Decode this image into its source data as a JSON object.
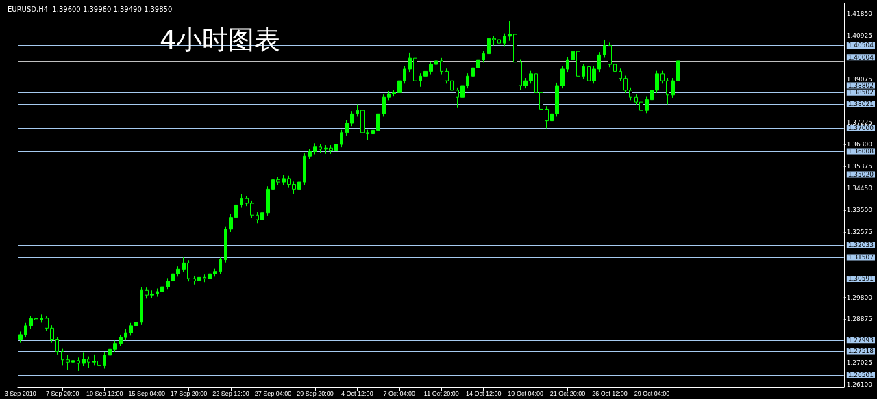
{
  "chart_data": {
    "type": "candlestick",
    "title": "4小时图表",
    "subtitle": "EURUSD,H4  1.39600 1.39960 1.39490 1.39850",
    "color": "#00ff00",
    "categories": [
      "3 Sep 2010",
      null,
      null,
      null,
      null,
      null,
      null,
      null,
      "7 Sep 20:00",
      null,
      null,
      null,
      null,
      null,
      null,
      null,
      "10 Sep 12:00",
      null,
      null,
      null,
      null,
      null,
      null,
      null,
      "15 Sep 04:00",
      null,
      null,
      null,
      null,
      null,
      null,
      null,
      "17 Sep 20:00",
      null,
      null,
      null,
      null,
      null,
      null,
      null,
      "22 Sep 12:00",
      null,
      null,
      null,
      null,
      null,
      null,
      null,
      "27 Sep 04:00",
      null,
      null,
      null,
      null,
      null,
      null,
      null,
      "29 Sep 20:00",
      null,
      null,
      null,
      null,
      null,
      null,
      null,
      "4 Oct 12:00",
      null,
      null,
      null,
      null,
      null,
      null,
      null,
      "7 Oct 04:00",
      null,
      null,
      null,
      null,
      null,
      null,
      null,
      "11 Oct 20:00",
      null,
      null,
      null,
      null,
      null,
      null,
      null,
      "14 Oct 12:00",
      null,
      null,
      null,
      null,
      null,
      null,
      null,
      "19 Oct 04:00",
      null,
      null,
      null,
      null,
      null,
      null,
      null,
      "21 Oct 20:00",
      null,
      null,
      null,
      null,
      null,
      null,
      null,
      "26 Oct 12:00",
      null,
      null,
      null,
      null,
      null,
      null,
      null,
      "29 Oct 04:00",
      null,
      null,
      null,
      null,
      null,
      null,
      null,
      null,
      null,
      null,
      null,
      null,
      null,
      null,
      null,
      null,
      null,
      null,
      null,
      null,
      null,
      null,
      null,
      null,
      null,
      null,
      null,
      null,
      null,
      null,
      null,
      null,
      null,
      null,
      null,
      null
    ],
    "ohlc": [
      [
        1.28,
        1.2835,
        1.2788,
        1.2822
      ],
      [
        1.2822,
        1.2872,
        1.281,
        1.286
      ],
      [
        1.286,
        1.2902,
        1.2848,
        1.289
      ],
      [
        1.289,
        1.2905,
        1.2872,
        1.2885
      ],
      [
        1.2885,
        1.2908,
        1.2873,
        1.2892
      ],
      [
        1.2892,
        1.29,
        1.2838,
        1.285
      ],
      [
        1.285,
        1.2862,
        1.2788,
        1.28
      ],
      [
        1.28,
        1.2812,
        1.2738,
        1.275
      ],
      [
        1.275,
        1.2762,
        1.269,
        1.2715
      ],
      [
        1.2715,
        1.2735,
        1.2672,
        1.2705
      ],
      [
        1.2705,
        1.274,
        1.269,
        1.2712
      ],
      [
        1.2712,
        1.2725,
        1.2668,
        1.27
      ],
      [
        1.27,
        1.2745,
        1.2688,
        1.2718
      ],
      [
        1.2718,
        1.273,
        1.268,
        1.2705
      ],
      [
        1.2705,
        1.2738,
        1.269,
        1.271
      ],
      [
        1.271,
        1.2722,
        1.266,
        1.269
      ],
      [
        1.269,
        1.2748,
        1.2678,
        1.2735
      ],
      [
        1.2735,
        1.2772,
        1.2723,
        1.276
      ],
      [
        1.276,
        1.2797,
        1.2748,
        1.2785
      ],
      [
        1.2785,
        1.2822,
        1.2773,
        1.281
      ],
      [
        1.281,
        1.2845,
        1.2798,
        1.283
      ],
      [
        1.283,
        1.2872,
        1.2818,
        1.286
      ],
      [
        1.286,
        1.289,
        1.2848,
        1.2875
      ],
      [
        1.2875,
        1.3025,
        1.2863,
        1.301
      ],
      [
        1.301,
        1.3022,
        1.2975,
        1.299
      ],
      [
        1.299,
        1.301,
        1.2978,
        1.2995
      ],
      [
        1.2995,
        1.3018,
        1.2983,
        1.3005
      ],
      [
        1.3005,
        1.304,
        1.2993,
        1.3025
      ],
      [
        1.3025,
        1.3062,
        1.3013,
        1.305
      ],
      [
        1.305,
        1.3092,
        1.3038,
        1.308
      ],
      [
        1.308,
        1.3112,
        1.3068,
        1.31
      ],
      [
        1.31,
        1.315,
        1.3088,
        1.3126
      ],
      [
        1.3126,
        1.3138,
        1.3048,
        1.306
      ],
      [
        1.306,
        1.3072,
        1.3035,
        1.305
      ],
      [
        1.305,
        1.3078,
        1.3038,
        1.3065
      ],
      [
        1.3065,
        1.3077,
        1.3045,
        1.306
      ],
      [
        1.306,
        1.3092,
        1.3048,
        1.308
      ],
      [
        1.308,
        1.3102,
        1.3068,
        1.309
      ],
      [
        1.309,
        1.3152,
        1.3078,
        1.314
      ],
      [
        1.314,
        1.3282,
        1.3128,
        1.327
      ],
      [
        1.327,
        1.3335,
        1.3258,
        1.332
      ],
      [
        1.332,
        1.3388,
        1.3308,
        1.3373
      ],
      [
        1.3373,
        1.342,
        1.3361,
        1.34
      ],
      [
        1.34,
        1.3412,
        1.3368,
        1.338
      ],
      [
        1.338,
        1.3392,
        1.3318,
        1.333
      ],
      [
        1.333,
        1.3342,
        1.3295,
        1.331
      ],
      [
        1.331,
        1.3352,
        1.3298,
        1.334
      ],
      [
        1.334,
        1.3452,
        1.3328,
        1.344
      ],
      [
        1.344,
        1.3495,
        1.3428,
        1.348
      ],
      [
        1.348,
        1.3492,
        1.3458,
        1.347
      ],
      [
        1.347,
        1.35,
        1.3458,
        1.3485
      ],
      [
        1.3485,
        1.3497,
        1.3448,
        1.346
      ],
      [
        1.346,
        1.3472,
        1.342,
        1.344
      ],
      [
        1.344,
        1.3482,
        1.3428,
        1.347
      ],
      [
        1.347,
        1.3592,
        1.3458,
        1.358
      ],
      [
        1.358,
        1.3612,
        1.3568,
        1.36
      ],
      [
        1.36,
        1.3635,
        1.3588,
        1.3619
      ],
      [
        1.3619,
        1.3631,
        1.3595,
        1.361
      ],
      [
        1.361,
        1.3627,
        1.359,
        1.3615
      ],
      [
        1.3615,
        1.3627,
        1.359,
        1.3605
      ],
      [
        1.3605,
        1.3642,
        1.3593,
        1.363
      ],
      [
        1.363,
        1.3692,
        1.3618,
        1.368
      ],
      [
        1.368,
        1.3732,
        1.3668,
        1.372
      ],
      [
        1.372,
        1.3772,
        1.3708,
        1.376
      ],
      [
        1.376,
        1.38,
        1.3748,
        1.3775
      ],
      [
        1.3775,
        1.3787,
        1.3668,
        1.368
      ],
      [
        1.368,
        1.3692,
        1.365,
        1.3675
      ],
      [
        1.3675,
        1.3702,
        1.3655,
        1.369
      ],
      [
        1.369,
        1.3772,
        1.3678,
        1.376
      ],
      [
        1.376,
        1.3842,
        1.3748,
        1.383
      ],
      [
        1.383,
        1.3857,
        1.3818,
        1.3845
      ],
      [
        1.3845,
        1.3862,
        1.3833,
        1.385
      ],
      [
        1.385,
        1.3912,
        1.3838,
        1.39
      ],
      [
        1.39,
        1.3962,
        1.3888,
        1.395
      ],
      [
        1.395,
        1.402,
        1.3938,
        1.3996
      ],
      [
        1.3996,
        1.4008,
        1.387,
        1.39
      ],
      [
        1.39,
        1.3932,
        1.3875,
        1.392
      ],
      [
        1.392,
        1.3952,
        1.3908,
        1.394
      ],
      [
        1.394,
        1.3982,
        1.3928,
        1.397
      ],
      [
        1.397,
        1.4,
        1.3958,
        1.3985
      ],
      [
        1.3985,
        1.3997,
        1.3928,
        1.394
      ],
      [
        1.394,
        1.3952,
        1.3888,
        1.39
      ],
      [
        1.39,
        1.3912,
        1.3848,
        1.386
      ],
      [
        1.386,
        1.3872,
        1.3785,
        1.383
      ],
      [
        1.383,
        1.3892,
        1.3818,
        1.388
      ],
      [
        1.388,
        1.3932,
        1.3868,
        1.392
      ],
      [
        1.392,
        1.3967,
        1.3908,
        1.3955
      ],
      [
        1.3955,
        1.4002,
        1.3943,
        1.399
      ],
      [
        1.399,
        1.4027,
        1.3978,
        1.4015
      ],
      [
        1.4015,
        1.4112,
        1.4003,
        1.408
      ],
      [
        1.408,
        1.4092,
        1.405,
        1.4075
      ],
      [
        1.4075,
        1.4087,
        1.404,
        1.406
      ],
      [
        1.406,
        1.4102,
        1.4048,
        1.409
      ],
      [
        1.409,
        1.4156,
        1.407,
        1.4098
      ],
      [
        1.4098,
        1.411,
        1.3968,
        1.398
      ],
      [
        1.398,
        1.3992,
        1.386,
        1.388
      ],
      [
        1.388,
        1.3912,
        1.3868,
        1.39
      ],
      [
        1.39,
        1.3942,
        1.3888,
        1.393
      ],
      [
        1.393,
        1.3942,
        1.3838,
        1.385
      ],
      [
        1.385,
        1.3862,
        1.3768,
        1.378
      ],
      [
        1.378,
        1.3792,
        1.3698,
        1.373
      ],
      [
        1.373,
        1.3772,
        1.3718,
        1.376
      ],
      [
        1.376,
        1.3892,
        1.3748,
        1.388
      ],
      [
        1.388,
        1.3962,
        1.3868,
        1.395
      ],
      [
        1.395,
        1.4002,
        1.3938,
        1.399
      ],
      [
        1.399,
        1.4045,
        1.3978,
        1.4025
      ],
      [
        1.4025,
        1.4037,
        1.3908,
        1.392
      ],
      [
        1.392,
        1.3972,
        1.3908,
        1.396
      ],
      [
        1.396,
        1.3972,
        1.3875,
        1.39
      ],
      [
        1.39,
        1.3962,
        1.3888,
        1.395
      ],
      [
        1.395,
        1.4022,
        1.3938,
        1.401
      ],
      [
        1.401,
        1.4075,
        1.3998,
        1.405
      ],
      [
        1.405,
        1.4062,
        1.3958,
        1.397
      ],
      [
        1.397,
        1.3982,
        1.3928,
        1.394
      ],
      [
        1.394,
        1.3952,
        1.3898,
        1.391
      ],
      [
        1.391,
        1.3922,
        1.3848,
        1.386
      ],
      [
        1.386,
        1.3872,
        1.3818,
        1.383
      ],
      [
        1.383,
        1.3842,
        1.3798,
        1.381
      ],
      [
        1.381,
        1.3822,
        1.373,
        1.3775
      ],
      [
        1.3775,
        1.3832,
        1.3763,
        1.382
      ],
      [
        1.382,
        1.3872,
        1.3808,
        1.386
      ],
      [
        1.386,
        1.3942,
        1.3848,
        1.393
      ],
      [
        1.393,
        1.3942,
        1.3888,
        1.39
      ],
      [
        1.39,
        1.3912,
        1.38,
        1.384
      ],
      [
        1.384,
        1.3912,
        1.3828,
        1.39
      ],
      [
        1.39,
        1.3996,
        1.3888,
        1.3985
      ],
      null,
      null,
      null,
      null,
      null,
      null,
      null,
      null,
      null,
      null,
      null,
      null,
      null,
      null,
      null,
      null,
      null,
      null,
      null,
      null,
      null,
      null,
      null,
      null,
      null,
      null,
      null,
      null,
      null,
      null,
      null
    ],
    "ylim": [
      1.2598,
      1.4229
    ],
    "yticks": [
      {
        "value": 1.261,
        "label": "1.26100"
      },
      {
        "value": 1.27025,
        "label": "1.27025"
      },
      {
        "value": 1.28875,
        "label": "1.28875"
      },
      {
        "value": 1.298,
        "label": "1.29800"
      },
      {
        "value": 1.32575,
        "label": "1.32575"
      },
      {
        "value": 1.335,
        "label": "1.33500"
      },
      {
        "value": 1.3445,
        "label": "1.34450"
      },
      {
        "value": 1.35375,
        "label": "1.35375"
      },
      {
        "value": 1.363,
        "label": "1.36300"
      },
      {
        "value": 1.37225,
        "label": "1.37225"
      },
      {
        "value": 1.39075,
        "label": "1.39075"
      },
      {
        "value": 1.40925,
        "label": "1.40925"
      },
      {
        "value": 1.4185,
        "label": "1.41850"
      }
    ],
    "ref_lines": [
      {
        "axis": "y",
        "value": 1.40504,
        "label": "1.40504",
        "color": "#a6caf0"
      },
      {
        "axis": "y",
        "value": 1.40004,
        "label": "1.40004",
        "color": "#a6caf0"
      },
      {
        "axis": "y",
        "value": 1.3985,
        "label": null,
        "color": "#c0c0c0"
      },
      {
        "axis": "y",
        "value": 1.38802,
        "label": "1.38802",
        "color": "#a6caf0"
      },
      {
        "axis": "y",
        "value": 1.38502,
        "label": "1.38502",
        "color": "#a6caf0"
      },
      {
        "axis": "y",
        "value": 1.38021,
        "label": "1.38021",
        "color": "#a6caf0"
      },
      {
        "axis": "y",
        "value": 1.37,
        "label": "1.37000",
        "color": "#a6caf0"
      },
      {
        "axis": "y",
        "value": 1.36008,
        "label": "1.36008",
        "color": "#a6caf0"
      },
      {
        "axis": "y",
        "value": 1.3502,
        "label": "1.35020",
        "color": "#a6caf0"
      },
      {
        "axis": "y",
        "value": 1.32033,
        "label": "1.32033",
        "color": "#a6caf0"
      },
      {
        "axis": "y",
        "value": 1.31507,
        "label": "1.31507",
        "color": "#a6caf0"
      },
      {
        "axis": "y",
        "value": 1.30591,
        "label": "1.30591",
        "color": "#a6caf0"
      },
      {
        "axis": "y",
        "value": 1.27993,
        "label": "1.27993",
        "color": "#a6caf0"
      },
      {
        "axis": "y",
        "value": 1.27518,
        "label": "1.27518",
        "color": "#a6caf0"
      },
      {
        "axis": "y",
        "value": 1.26501,
        "label": "1.26501",
        "color": "#a6caf0"
      }
    ],
    "grid": false
  }
}
